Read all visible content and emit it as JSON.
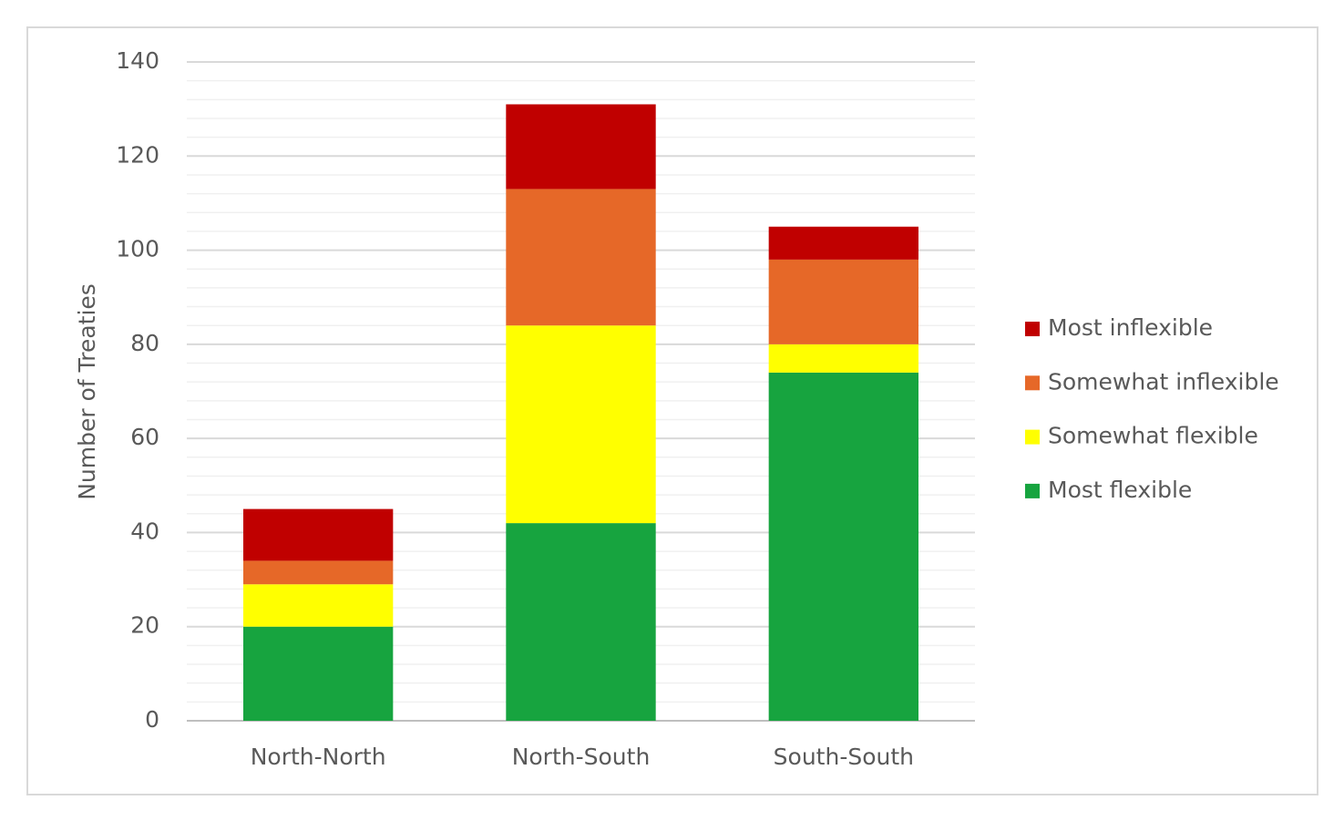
{
  "chart_data": {
    "type": "stacked_bar",
    "y_axis_label": "Number of Treaties",
    "categories": [
      "North-North",
      "North-South",
      "South-South"
    ],
    "series": [
      {
        "name": "Most flexible",
        "color": "#17a43f",
        "values": [
          20,
          42,
          74
        ]
      },
      {
        "name": "Somewhat flexible",
        "color": "#ffff00",
        "values": [
          9,
          42,
          6
        ]
      },
      {
        "name": "Somewhat inflexible",
        "color": "#e66828",
        "values": [
          5,
          29,
          18
        ]
      },
      {
        "name": "Most inflexible",
        "color": "#c00000",
        "values": [
          11,
          18,
          7
        ]
      }
    ],
    "ylim": [
      0,
      140
    ],
    "yticks": [
      0,
      20,
      40,
      60,
      80,
      100,
      120,
      140
    ],
    "minor_gridlines": [
      4,
      8,
      12,
      16,
      24,
      28,
      32,
      36,
      44,
      48,
      52,
      56,
      64,
      68,
      72,
      76,
      84,
      88,
      92,
      96,
      104,
      108,
      112,
      116,
      124,
      128,
      132,
      136
    ],
    "grid": true,
    "legend_position": "right"
  }
}
